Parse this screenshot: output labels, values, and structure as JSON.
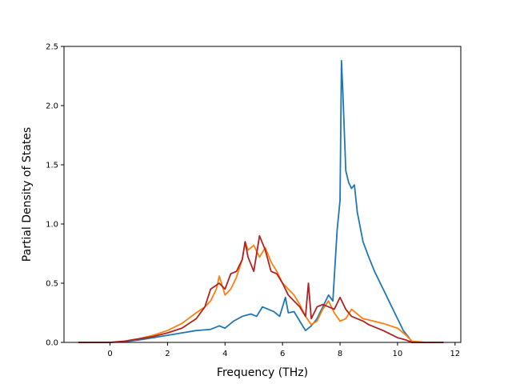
{
  "chart_data": {
    "type": "line",
    "xlabel": "Frequency (THz)",
    "ylabel": "Partial Density of States",
    "xlim": [
      -1.6,
      12.2
    ],
    "ylim": [
      0,
      2.5
    ],
    "xticks": [
      0,
      2,
      4,
      6,
      8,
      10,
      12
    ],
    "yticks": [
      0.0,
      0.5,
      1.0,
      1.5,
      2.0,
      2.5
    ],
    "xtick_labels": [
      "0",
      "2",
      "4",
      "6",
      "8",
      "10",
      "12"
    ],
    "ytick_labels": [
      "0.0",
      "0.5",
      "1.0",
      "1.5",
      "2.0",
      "2.5"
    ],
    "grid": false,
    "legend": "none",
    "series": [
      {
        "color": "#1f77b4",
        "x": [
          -1.1,
          0,
          0.5,
          1.0,
          1.5,
          2.0,
          2.5,
          3.0,
          3.5,
          3.8,
          4.0,
          4.3,
          4.6,
          4.9,
          5.1,
          5.3,
          5.5,
          5.7,
          5.9,
          6.1,
          6.2,
          6.4,
          6.6,
          6.8,
          7.0,
          7.2,
          7.4,
          7.6,
          7.75,
          7.9,
          8.0,
          8.05,
          8.1,
          8.2,
          8.3,
          8.4,
          8.5,
          8.6,
          8.8,
          9.0,
          9.2,
          9.5,
          9.8,
          10.0,
          10.2,
          10.4,
          10.5,
          11.0,
          11.6
        ],
        "y": [
          0.0,
          0.0,
          0.005,
          0.02,
          0.04,
          0.06,
          0.08,
          0.1,
          0.11,
          0.14,
          0.12,
          0.18,
          0.22,
          0.24,
          0.22,
          0.3,
          0.28,
          0.26,
          0.22,
          0.38,
          0.25,
          0.26,
          0.18,
          0.1,
          0.14,
          0.2,
          0.3,
          0.4,
          0.35,
          0.95,
          1.2,
          2.38,
          2.1,
          1.45,
          1.35,
          1.3,
          1.33,
          1.1,
          0.85,
          0.72,
          0.6,
          0.45,
          0.3,
          0.2,
          0.1,
          0.04,
          0.0,
          0.0,
          0.0
        ]
      },
      {
        "color": "#ff7f0e",
        "x": [
          -1.1,
          0,
          0.5,
          1.0,
          1.5,
          2.0,
          2.5,
          3.0,
          3.3,
          3.5,
          3.7,
          3.8,
          4.0,
          4.2,
          4.4,
          4.6,
          4.7,
          4.8,
          5.0,
          5.2,
          5.4,
          5.6,
          5.8,
          6.0,
          6.2,
          6.4,
          6.6,
          6.8,
          7.0,
          7.2,
          7.4,
          7.6,
          7.8,
          8.0,
          8.2,
          8.4,
          8.6,
          8.8,
          9.0,
          9.5,
          10.0,
          10.3,
          10.5,
          11.0,
          11.6
        ],
        "y": [
          0.0,
          0.0,
          0.01,
          0.03,
          0.06,
          0.1,
          0.16,
          0.25,
          0.3,
          0.35,
          0.45,
          0.56,
          0.4,
          0.45,
          0.55,
          0.7,
          0.85,
          0.78,
          0.82,
          0.72,
          0.8,
          0.68,
          0.6,
          0.5,
          0.45,
          0.4,
          0.32,
          0.22,
          0.15,
          0.18,
          0.28,
          0.35,
          0.25,
          0.18,
          0.2,
          0.28,
          0.24,
          0.2,
          0.19,
          0.16,
          0.12,
          0.06,
          0.01,
          0.0,
          0.0
        ]
      },
      {
        "color": "#b22222",
        "x": [
          -1.1,
          0,
          0.5,
          1.0,
          1.5,
          2.0,
          2.5,
          3.0,
          3.3,
          3.5,
          3.8,
          4.0,
          4.2,
          4.4,
          4.6,
          4.7,
          4.8,
          5.0,
          5.2,
          5.4,
          5.6,
          5.8,
          6.0,
          6.2,
          6.4,
          6.6,
          6.8,
          6.9,
          7.0,
          7.2,
          7.4,
          7.6,
          7.8,
          8.0,
          8.2,
          8.4,
          8.6,
          8.8,
          9.0,
          9.5,
          10.0,
          10.3,
          10.5,
          11.0,
          11.6
        ],
        "y": [
          0.0,
          0.0,
          0.01,
          0.03,
          0.05,
          0.08,
          0.12,
          0.2,
          0.3,
          0.45,
          0.5,
          0.45,
          0.58,
          0.6,
          0.7,
          0.85,
          0.72,
          0.6,
          0.9,
          0.78,
          0.6,
          0.58,
          0.5,
          0.4,
          0.35,
          0.3,
          0.22,
          0.5,
          0.2,
          0.3,
          0.32,
          0.3,
          0.28,
          0.38,
          0.28,
          0.22,
          0.2,
          0.18,
          0.15,
          0.1,
          0.04,
          0.02,
          0.0,
          0.0,
          0.0
        ]
      }
    ]
  }
}
